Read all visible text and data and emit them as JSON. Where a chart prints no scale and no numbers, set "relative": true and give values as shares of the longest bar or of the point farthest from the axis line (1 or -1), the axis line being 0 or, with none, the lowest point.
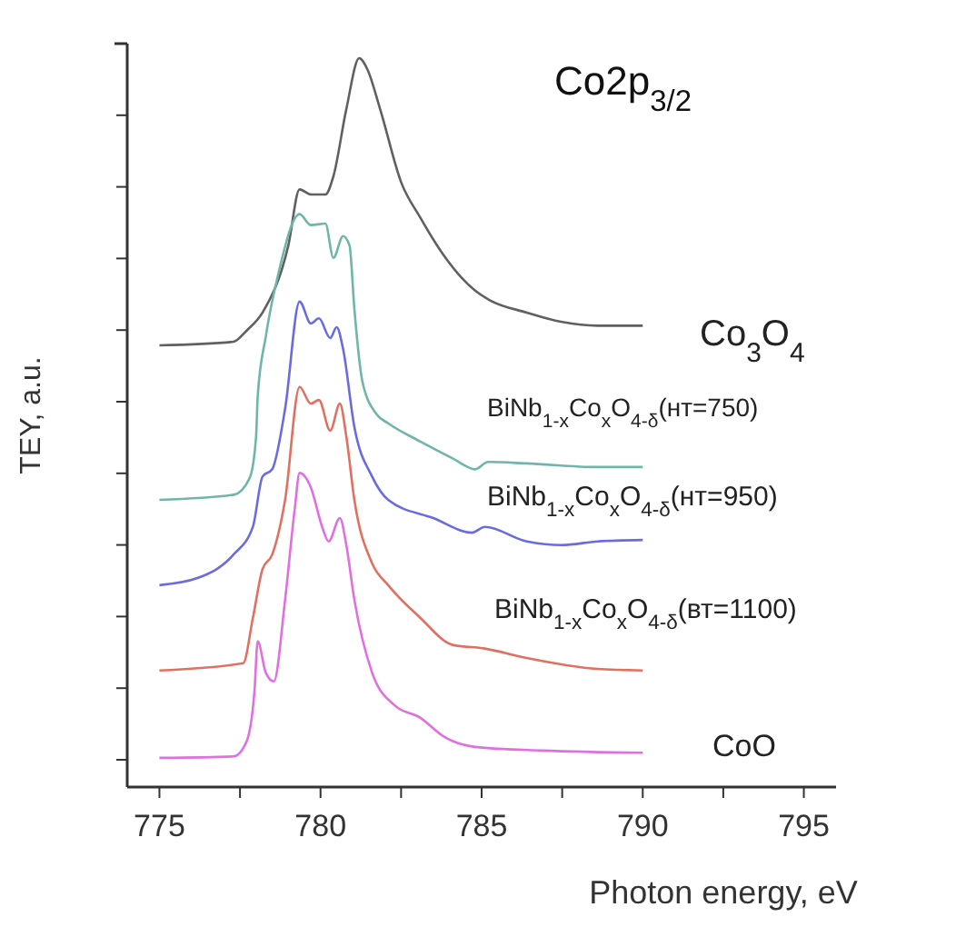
{
  "chart_data": {
    "type": "line",
    "title": "Co2p$_{3/2}$",
    "xlabel": "Photon energy, eV",
    "ylabel": "TEY, a.u.",
    "relative": true,
    "xlim": [
      774,
      796
    ],
    "xticks": [
      775,
      {
        "value": 777.5,
        "label": null
      },
      780,
      {
        "value": 782.5,
        "label": null
      },
      785,
      {
        "value": 787.5,
        "label": null
      },
      790,
      {
        "value": 792.5,
        "label": null
      },
      795
    ],
    "marker": "none",
    "line_style": "solid",
    "grid": false,
    "series": [
      {
        "name": "Co$_{3}$O$_{4}$",
        "color": "#606060",
        "x": [
          775,
          777.3,
          777.7,
          778.2,
          779,
          779.35,
          779.7,
          780.15,
          780.4,
          780.8,
          781.2,
          781.45,
          781.85,
          782.5,
          783.1,
          783.8,
          784.8,
          785.25,
          786.4,
          787.5,
          788.6,
          790
        ],
        "values": [
          0.606,
          0.611,
          0.626,
          0.651,
          0.743,
          0.82,
          0.813,
          0.813,
          0.838,
          0.93,
          1.0,
          0.985,
          0.93,
          0.83,
          0.781,
          0.731,
          0.681,
          0.668,
          0.651,
          0.638,
          0.633,
          0.633
        ]
      },
      {
        "name": "BiNb$_{1-x}$Co$_{x}$O$_{4-δ}$(нт=750)",
        "color": "#6fb5a8",
        "x": [
          775,
          777.3,
          777.8,
          778.0,
          778.05,
          778.3,
          778.7,
          779.35,
          779.7,
          780.15,
          780.4,
          780.7,
          780.9,
          781.05,
          781.3,
          781.75,
          782.1,
          783.1,
          784.1,
          784.8,
          785.2,
          786.4,
          788.6,
          790
        ],
        "values": [
          0.394,
          0.401,
          0.424,
          0.481,
          0.536,
          0.618,
          0.706,
          0.786,
          0.771,
          0.773,
          0.726,
          0.756,
          0.743,
          0.656,
          0.556,
          0.511,
          0.499,
          0.474,
          0.451,
          0.436,
          0.446,
          0.444,
          0.439,
          0.439
        ]
      },
      {
        "name": "BiNb$_{1-x}$Co$_{x}$O$_{4-δ}$(нт=950)",
        "color": "#6b6be0",
        "x": [
          775,
          776.2,
          777.3,
          777.9,
          778.2,
          778.5,
          778.9,
          779.35,
          779.7,
          779.95,
          780.3,
          780.5,
          780.7,
          781.05,
          781.6,
          782.1,
          783.5,
          784.7,
          785.1,
          786.4,
          787.5,
          788.6,
          790
        ],
        "values": [
          0.277,
          0.287,
          0.319,
          0.357,
          0.426,
          0.436,
          0.519,
          0.666,
          0.636,
          0.643,
          0.616,
          0.631,
          0.601,
          0.494,
          0.426,
          0.394,
          0.369,
          0.349,
          0.357,
          0.337,
          0.332,
          0.337,
          0.339
        ]
      },
      {
        "name": "BiNb$_{1-x}$Co$_{x}$O$_{4-δ}$(вт=1100)",
        "color": "#e07060",
        "x": [
          775,
          777.6,
          777.9,
          778.2,
          778.5,
          778.9,
          779.35,
          779.7,
          779.95,
          780.3,
          780.6,
          780.8,
          781.05,
          781.6,
          782.1,
          783.1,
          784.1,
          785.1,
          786.4,
          788.6,
          790
        ],
        "values": [
          0.16,
          0.17,
          0.232,
          0.299,
          0.319,
          0.394,
          0.549,
          0.526,
          0.531,
          0.489,
          0.526,
          0.481,
          0.394,
          0.307,
          0.277,
          0.232,
          0.195,
          0.19,
          0.177,
          0.162,
          0.16
        ]
      },
      {
        "name": "CoO",
        "color": "#e070e0",
        "x": [
          775,
          777.3,
          777.7,
          777.95,
          778.05,
          778.3,
          778.55,
          778.9,
          779.2,
          779.35,
          779.7,
          780.05,
          780.25,
          780.6,
          780.8,
          781.05,
          781.6,
          782.3,
          783.1,
          783.8,
          784.8,
          786.9,
          790
        ],
        "values": [
          0.04,
          0.042,
          0.062,
          0.132,
          0.2,
          0.157,
          0.145,
          0.257,
          0.382,
          0.431,
          0.411,
          0.357,
          0.337,
          0.369,
          0.332,
          0.257,
          0.157,
          0.112,
          0.095,
          0.07,
          0.055,
          0.05,
          0.047
        ]
      }
    ]
  }
}
